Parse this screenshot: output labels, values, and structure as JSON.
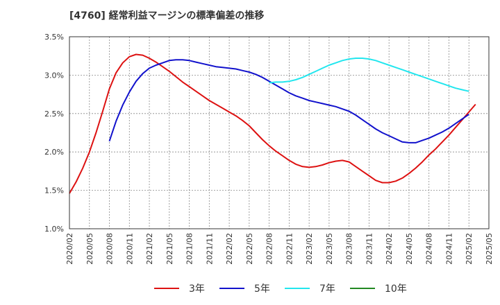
{
  "title": "[4760]  経常利益マージンの標準偏差の推移",
  "chart_data": {
    "type": "line",
    "title": "[4760]  経常利益マージンの標準偏差の推移",
    "xlabel": "",
    "ylabel": "",
    "x_ticks": [
      "2020/02",
      "2020/05",
      "2020/08",
      "2020/11",
      "2021/02",
      "2021/05",
      "2021/08",
      "2021/11",
      "2022/02",
      "2022/05",
      "2022/08",
      "2022/11",
      "2023/02",
      "2023/05",
      "2023/08",
      "2023/11",
      "2024/02",
      "2024/05",
      "2024/08",
      "2024/11",
      "2025/02",
      "2025/05"
    ],
    "y_ticks": [
      "1.0%",
      "1.5%",
      "2.0%",
      "2.5%",
      "3.0%",
      "3.5%"
    ],
    "y_tick_values": [
      1.0,
      1.5,
      2.0,
      2.5,
      3.0,
      3.5
    ],
    "ylim": [
      1.0,
      3.5
    ],
    "grid": true,
    "legend_position": "bottom",
    "series": [
      {
        "name": "3年",
        "color": "#dd1111",
        "points": [
          [
            "2020/02",
            1.46
          ],
          [
            "2020/03",
            1.61
          ],
          [
            "2020/04",
            1.79
          ],
          [
            "2020/05",
            2.0
          ],
          [
            "2020/06",
            2.25
          ],
          [
            "2020/07",
            2.53
          ],
          [
            "2020/08",
            2.82
          ],
          [
            "2020/09",
            3.03
          ],
          [
            "2020/10",
            3.16
          ],
          [
            "2020/11",
            3.24
          ],
          [
            "2020/12",
            3.27
          ],
          [
            "2021/01",
            3.26
          ],
          [
            "2021/02",
            3.22
          ],
          [
            "2021/03",
            3.17
          ],
          [
            "2021/04",
            3.11
          ],
          [
            "2021/05",
            3.05
          ],
          [
            "2021/06",
            2.98
          ],
          [
            "2021/07",
            2.91
          ],
          [
            "2021/08",
            2.85
          ],
          [
            "2021/09",
            2.79
          ],
          [
            "2021/10",
            2.73
          ],
          [
            "2021/11",
            2.67
          ],
          [
            "2021/12",
            2.62
          ],
          [
            "2022/01",
            2.57
          ],
          [
            "2022/02",
            2.52
          ],
          [
            "2022/03",
            2.47
          ],
          [
            "2022/04",
            2.41
          ],
          [
            "2022/05",
            2.34
          ],
          [
            "2022/06",
            2.25
          ],
          [
            "2022/07",
            2.16
          ],
          [
            "2022/08",
            2.08
          ],
          [
            "2022/09",
            2.01
          ],
          [
            "2022/10",
            1.95
          ],
          [
            "2022/11",
            1.89
          ],
          [
            "2022/12",
            1.84
          ],
          [
            "2023/01",
            1.81
          ],
          [
            "2023/02",
            1.8
          ],
          [
            "2023/03",
            1.81
          ],
          [
            "2023/04",
            1.83
          ],
          [
            "2023/05",
            1.86
          ],
          [
            "2023/06",
            1.88
          ],
          [
            "2023/07",
            1.89
          ],
          [
            "2023/08",
            1.87
          ],
          [
            "2023/09",
            1.81
          ],
          [
            "2023/10",
            1.75
          ],
          [
            "2023/11",
            1.69
          ],
          [
            "2023/12",
            1.63
          ],
          [
            "2024/01",
            1.6
          ],
          [
            "2024/02",
            1.6
          ],
          [
            "2024/03",
            1.62
          ],
          [
            "2024/04",
            1.66
          ],
          [
            "2024/05",
            1.72
          ],
          [
            "2024/06",
            1.79
          ],
          [
            "2024/07",
            1.87
          ],
          [
            "2024/08",
            1.96
          ],
          [
            "2024/09",
            2.04
          ],
          [
            "2024/10",
            2.13
          ],
          [
            "2024/11",
            2.22
          ],
          [
            "2024/12",
            2.32
          ],
          [
            "2025/01",
            2.42
          ],
          [
            "2025/02",
            2.52
          ],
          [
            "2025/03",
            2.62
          ]
        ]
      },
      {
        "name": "5年",
        "color": "#1111cc",
        "points": [
          [
            "2020/08",
            2.14
          ],
          [
            "2020/09",
            2.4
          ],
          [
            "2020/10",
            2.61
          ],
          [
            "2020/11",
            2.78
          ],
          [
            "2020/12",
            2.92
          ],
          [
            "2021/01",
            3.02
          ],
          [
            "2021/02",
            3.09
          ],
          [
            "2021/03",
            3.13
          ],
          [
            "2021/04",
            3.16
          ],
          [
            "2021/05",
            3.19
          ],
          [
            "2021/06",
            3.2
          ],
          [
            "2021/07",
            3.2
          ],
          [
            "2021/08",
            3.19
          ],
          [
            "2021/09",
            3.17
          ],
          [
            "2021/10",
            3.15
          ],
          [
            "2021/11",
            3.13
          ],
          [
            "2021/12",
            3.11
          ],
          [
            "2022/01",
            3.1
          ],
          [
            "2022/02",
            3.09
          ],
          [
            "2022/03",
            3.08
          ],
          [
            "2022/04",
            3.06
          ],
          [
            "2022/05",
            3.04
          ],
          [
            "2022/06",
            3.01
          ],
          [
            "2022/07",
            2.97
          ],
          [
            "2022/08",
            2.92
          ],
          [
            "2022/09",
            2.87
          ],
          [
            "2022/10",
            2.82
          ],
          [
            "2022/11",
            2.77
          ],
          [
            "2022/12",
            2.73
          ],
          [
            "2023/01",
            2.7
          ],
          [
            "2023/02",
            2.67
          ],
          [
            "2023/03",
            2.65
          ],
          [
            "2023/04",
            2.63
          ],
          [
            "2023/05",
            2.61
          ],
          [
            "2023/06",
            2.59
          ],
          [
            "2023/07",
            2.56
          ],
          [
            "2023/08",
            2.53
          ],
          [
            "2023/09",
            2.48
          ],
          [
            "2023/10",
            2.42
          ],
          [
            "2023/11",
            2.36
          ],
          [
            "2023/12",
            2.3
          ],
          [
            "2024/01",
            2.25
          ],
          [
            "2024/02",
            2.21
          ],
          [
            "2024/03",
            2.17
          ],
          [
            "2024/04",
            2.13
          ],
          [
            "2024/05",
            2.12
          ],
          [
            "2024/06",
            2.12
          ],
          [
            "2024/07",
            2.15
          ],
          [
            "2024/08",
            2.18
          ],
          [
            "2024/09",
            2.22
          ],
          [
            "2024/10",
            2.26
          ],
          [
            "2024/11",
            2.31
          ],
          [
            "2024/12",
            2.37
          ],
          [
            "2025/01",
            2.43
          ],
          [
            "2025/02",
            2.49
          ]
        ]
      },
      {
        "name": "7年",
        "color": "#22e6ee",
        "points": [
          [
            "2022/08",
            2.9
          ],
          [
            "2022/09",
            2.91
          ],
          [
            "2022/10",
            2.91
          ],
          [
            "2022/11",
            2.92
          ],
          [
            "2022/12",
            2.94
          ],
          [
            "2023/01",
            2.97
          ],
          [
            "2023/02",
            3.01
          ],
          [
            "2023/03",
            3.05
          ],
          [
            "2023/04",
            3.09
          ],
          [
            "2023/05",
            3.13
          ],
          [
            "2023/06",
            3.16
          ],
          [
            "2023/07",
            3.19
          ],
          [
            "2023/08",
            3.21
          ],
          [
            "2023/09",
            3.22
          ],
          [
            "2023/10",
            3.22
          ],
          [
            "2023/11",
            3.21
          ],
          [
            "2023/12",
            3.19
          ],
          [
            "2024/01",
            3.16
          ],
          [
            "2024/02",
            3.13
          ],
          [
            "2024/03",
            3.1
          ],
          [
            "2024/04",
            3.07
          ],
          [
            "2024/05",
            3.04
          ],
          [
            "2024/06",
            3.01
          ],
          [
            "2024/07",
            2.98
          ],
          [
            "2024/08",
            2.95
          ],
          [
            "2024/09",
            2.92
          ],
          [
            "2024/10",
            2.89
          ],
          [
            "2024/11",
            2.86
          ],
          [
            "2024/12",
            2.83
          ],
          [
            "2025/01",
            2.81
          ],
          [
            "2025/02",
            2.79
          ]
        ]
      },
      {
        "name": "10年",
        "color": "#228822",
        "points": []
      }
    ]
  }
}
